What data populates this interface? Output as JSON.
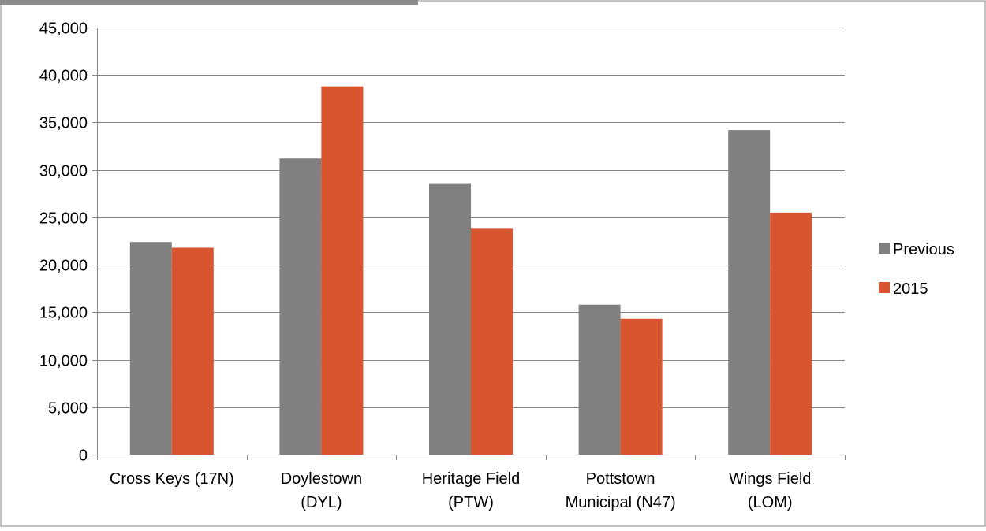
{
  "chart_data": {
    "type": "bar",
    "title": "",
    "xlabel": "",
    "ylabel": "",
    "categories": [
      [
        "Cross Keys (17N)"
      ],
      [
        "Doylestown",
        "(DYL)"
      ],
      [
        "Heritage Field",
        "(PTW)"
      ],
      [
        "Pottstown",
        "Municipal (N47)"
      ],
      [
        "Wings Field",
        "(LOM)"
      ]
    ],
    "series": [
      {
        "name": "Previous",
        "color": "#808080",
        "values": [
          22400,
          31200,
          28600,
          15800,
          34200
        ]
      },
      {
        "name": "2015",
        "color": "#D9552F",
        "values": [
          21800,
          38800,
          23800,
          14300,
          25500
        ]
      }
    ],
    "ylim": [
      0,
      45000
    ],
    "yticks": [
      0,
      5000,
      10000,
      15000,
      20000,
      25000,
      30000,
      35000,
      40000,
      45000
    ],
    "ytick_labels": [
      "0",
      "5,000",
      "10,000",
      "15,000",
      "20,000",
      "25,000",
      "30,000",
      "35,000",
      "40,000",
      "45,000"
    ],
    "grid": true,
    "legend_position": "right"
  }
}
